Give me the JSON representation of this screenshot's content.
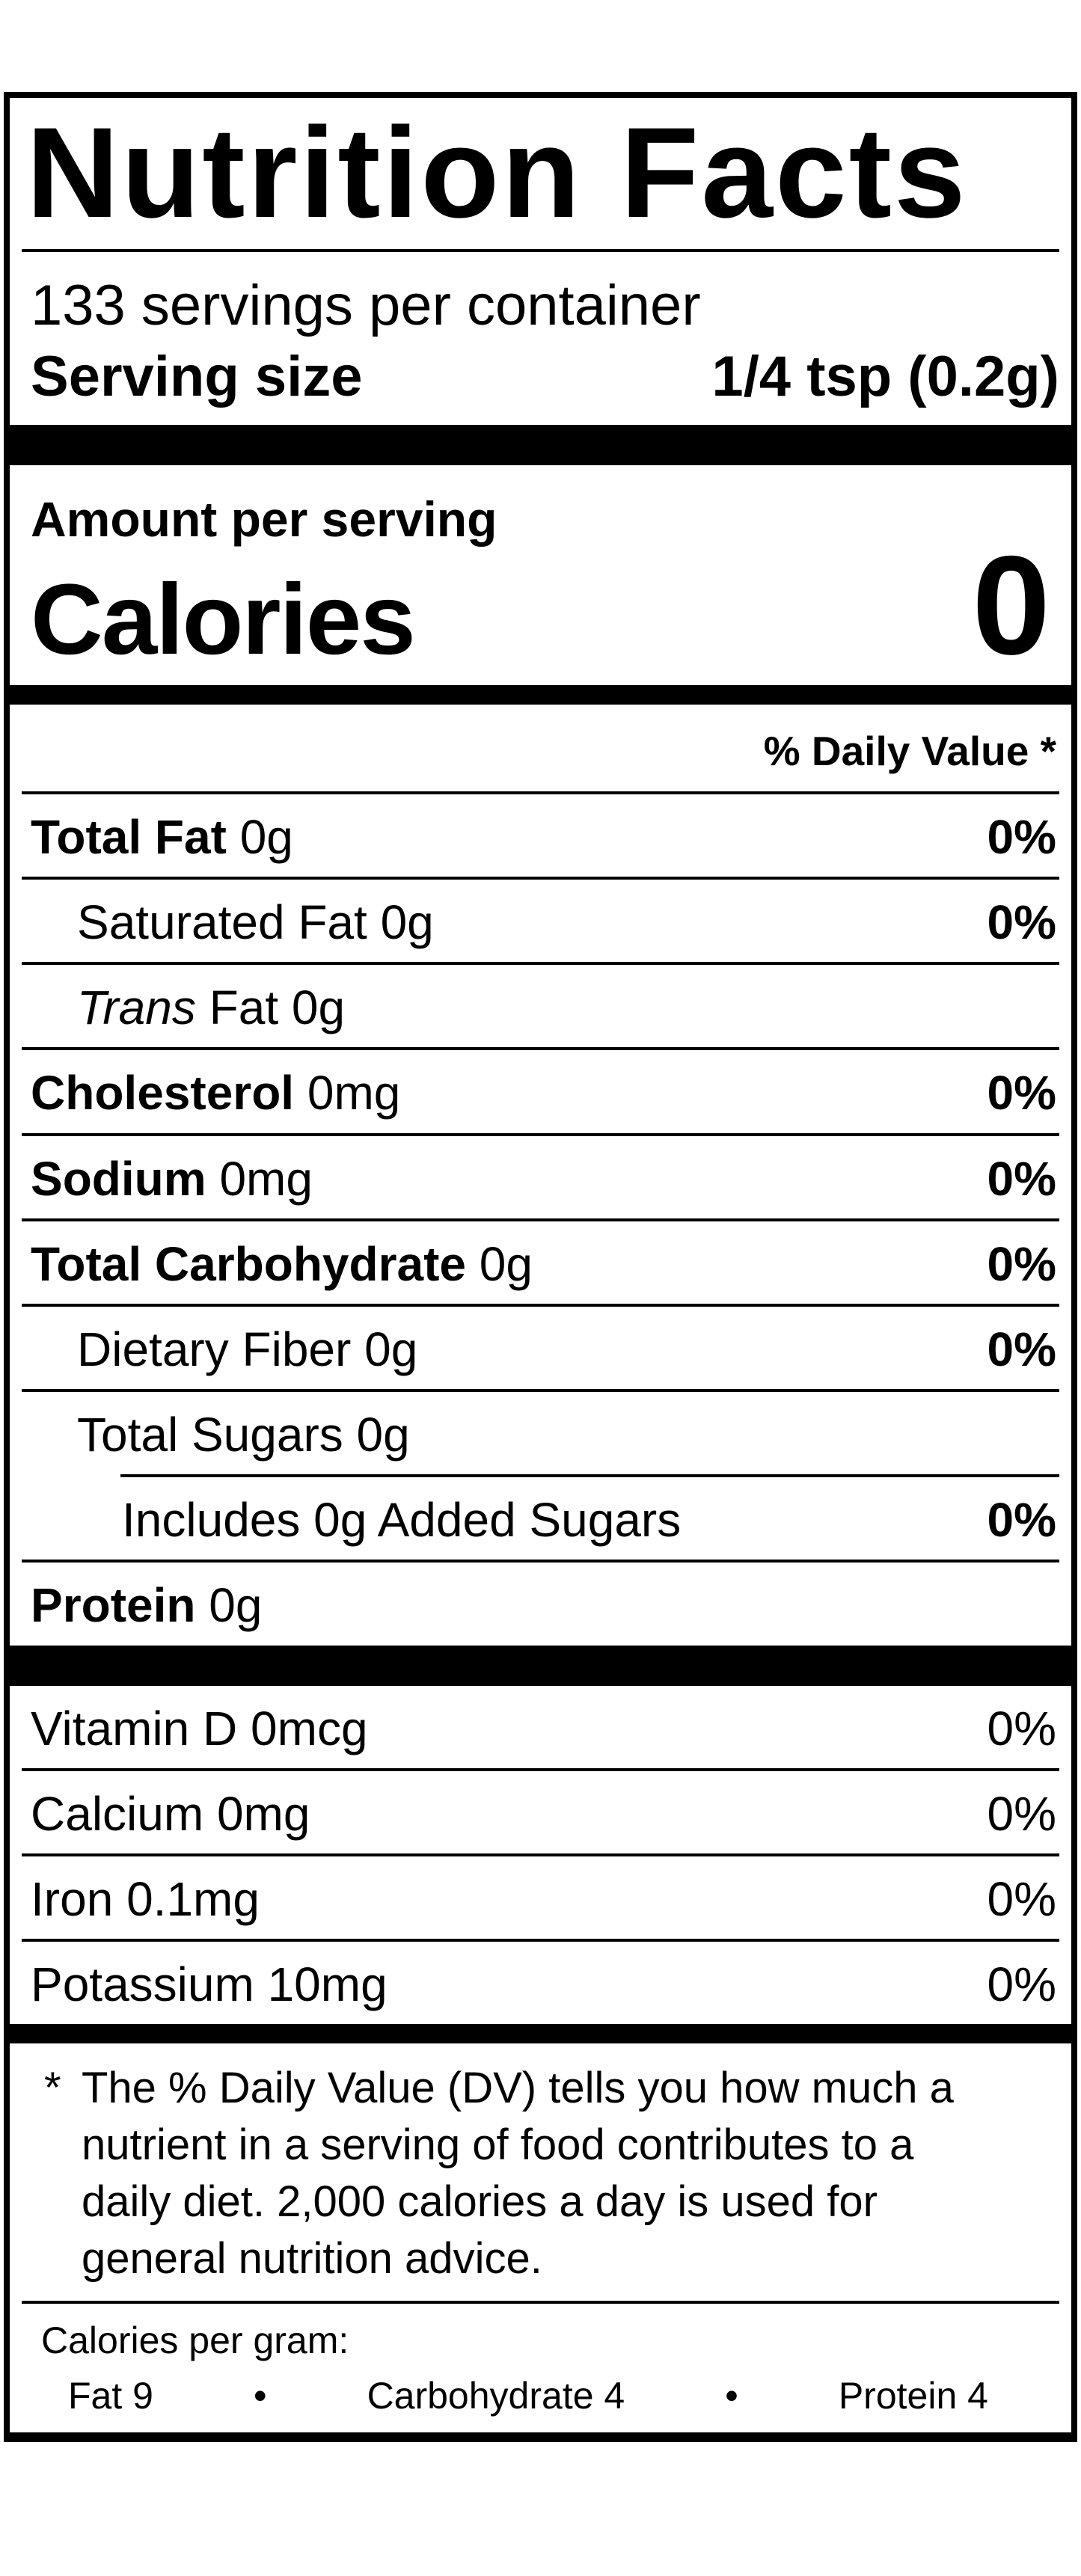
{
  "colors": {
    "ink": "#000000",
    "background": "#ffffff"
  },
  "label": {
    "title": "Nutrition Facts",
    "servings_per_container": "133 servings per container",
    "serving_size": {
      "label": "Serving size",
      "value": "1/4 tsp (0.2g)"
    },
    "amount_per_serving": "Amount per serving",
    "calories": {
      "label": "Calories",
      "value": "0"
    },
    "daily_value_header": "% Daily Value *",
    "nutrients": [
      {
        "name": "Total Fat",
        "amount": "0g",
        "dv": "0%"
      },
      {
        "name": "Saturated Fat",
        "amount": "0g",
        "dv": "0%"
      },
      {
        "name_italic": "Trans",
        "name": "Fat",
        "amount": "0g",
        "dv": ""
      },
      {
        "name": "Cholesterol",
        "amount": "0mg",
        "dv": "0%"
      },
      {
        "name": "Sodium",
        "amount": "0mg",
        "dv": "0%"
      },
      {
        "name": "Total Carbohydrate",
        "amount": "0g",
        "dv": "0%"
      },
      {
        "name": "Dietary Fiber",
        "amount": "0g",
        "dv": "0%"
      },
      {
        "name": "Total Sugars",
        "amount": "0g",
        "dv": ""
      },
      {
        "name": "Includes 0g Added Sugars",
        "amount": "",
        "dv": "0%"
      },
      {
        "name": "Protein",
        "amount": "0g",
        "dv": ""
      }
    ],
    "vitamins": [
      {
        "name": "Vitamin D 0mcg",
        "dv": "0%"
      },
      {
        "name": "Calcium 0mg",
        "dv": "0%"
      },
      {
        "name": "Iron 0.1mg",
        "dv": "0%"
      },
      {
        "name": "Potassium 10mg",
        "dv": "0%"
      }
    ],
    "footnote": {
      "marker": "*",
      "lines": [
        "The % Daily Value (DV) tells you how much a",
        "nutrient in a serving of food contributes to a",
        "daily diet. 2,000 calories a day is used for",
        "general nutrition advice."
      ]
    },
    "calories_per_gram": {
      "heading": "Calories per gram:",
      "bullet": "•",
      "items": [
        "Fat 9",
        "Carbohydrate 4",
        "Protein 4"
      ]
    }
  }
}
